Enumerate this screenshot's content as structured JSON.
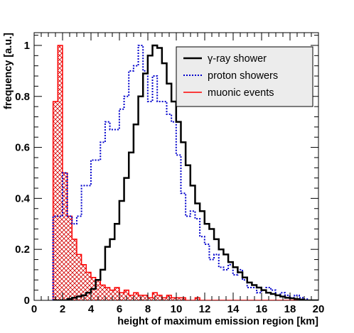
{
  "chart_data": {
    "type": "histogram",
    "xlabel": "height of maximum emission region [km]",
    "ylabel": "frequency [a.u.]",
    "xlim": [
      0,
      20
    ],
    "ylim": [
      0,
      1.05
    ],
    "x_ticks": [
      "0",
      "2",
      "4",
      "6",
      "8",
      "10",
      "12",
      "14",
      "16",
      "18",
      "20"
    ],
    "y_ticks": [
      "0",
      "0.2",
      "0.4",
      "0.6",
      "0.8",
      "1"
    ],
    "bin_width": 0.333,
    "legend_position": "top-right",
    "series": [
      {
        "name": "γ-ray shower",
        "style": "solid",
        "color": "#000000",
        "bin_start": 1.333,
        "values": [
          0.0,
          0.0,
          0.0,
          0.005,
          0.01,
          0.015,
          0.02,
          0.03,
          0.045,
          0.08,
          0.12,
          0.21,
          0.24,
          0.3,
          0.39,
          0.48,
          0.58,
          0.69,
          0.8,
          0.89,
          0.96,
          1.0,
          0.99,
          0.93,
          0.85,
          0.78,
          0.7,
          0.62,
          0.53,
          0.45,
          0.38,
          0.35,
          0.3,
          0.28,
          0.24,
          0.2,
          0.18,
          0.15,
          0.13,
          0.11,
          0.09,
          0.07,
          0.06,
          0.05,
          0.04,
          0.03,
          0.025,
          0.02,
          0.015,
          0.01,
          0.008,
          0.005,
          0.003,
          0.0,
          0.0,
          0.0
        ]
      },
      {
        "name": "proton showers",
        "style": "dotted",
        "color": "#0000cc",
        "bin_start": 1.333,
        "values": [
          0.33,
          0.33,
          0.5,
          0.33,
          0.3,
          0.33,
          0.45,
          0.45,
          0.55,
          0.55,
          0.62,
          0.7,
          0.67,
          0.67,
          0.75,
          0.8,
          0.9,
          0.92,
          1.0,
          0.9,
          0.78,
          0.88,
          0.78,
          0.78,
          0.73,
          0.7,
          0.57,
          0.42,
          0.33,
          0.35,
          0.32,
          0.25,
          0.22,
          0.16,
          0.18,
          0.13,
          0.12,
          0.14,
          0.1,
          0.12,
          0.08,
          0.05,
          0.05,
          0.03,
          0.04,
          0.05,
          0.04,
          0.02,
          0.03,
          0.02,
          0.01,
          0.02,
          0.01,
          0.005,
          0.0,
          0.0
        ]
      },
      {
        "name": "muonic events",
        "style": "solid-hatched",
        "color": "#ff0000",
        "bin_start": 1.333,
        "values": [
          0.78,
          1.0,
          0.5,
          0.33,
          0.24,
          0.18,
          0.14,
          0.11,
          0.09,
          0.08,
          0.06,
          0.05,
          0.04,
          0.05,
          0.03,
          0.04,
          0.02,
          0.03,
          0.02,
          0.02,
          0.01,
          0.03,
          0.02,
          0.01,
          0.02,
          0.01,
          0.01,
          0.01,
          0.0,
          0.0,
          0.01,
          0.0,
          0.0,
          0.0,
          0.0,
          0.0,
          0.0,
          0.0,
          0.0,
          0.0,
          0.0,
          0.0,
          0.0,
          0.0,
          0.0,
          0.0,
          0.0,
          0.0,
          0.0,
          0.0,
          0.0,
          0.0,
          0.0,
          0.0,
          0.0,
          0.0
        ]
      }
    ]
  }
}
